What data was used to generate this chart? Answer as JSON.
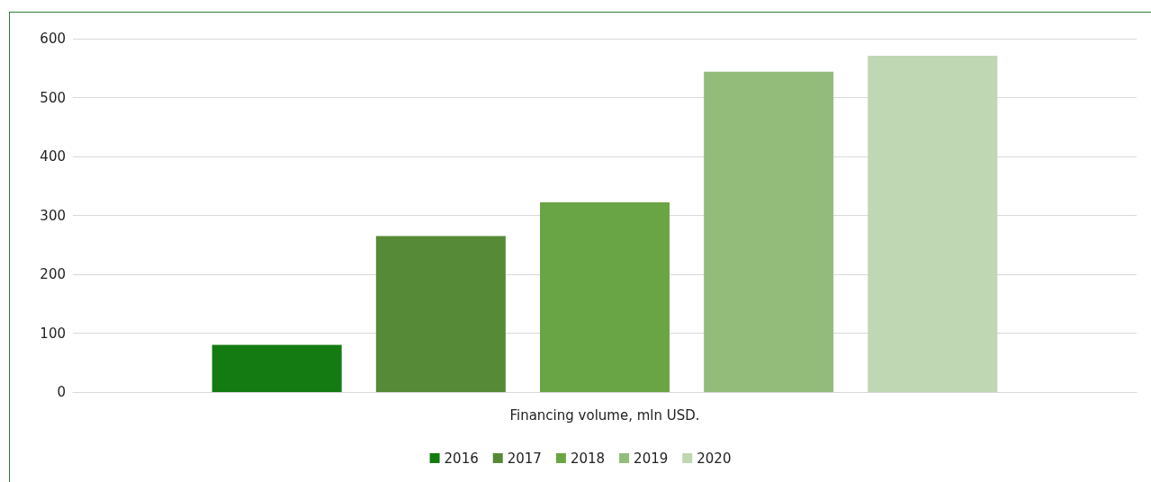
{
  "chart_data": {
    "type": "bar",
    "categories": [
      "Financing volume, mln USD."
    ],
    "series": [
      {
        "name": "2016",
        "color": "#147a12",
        "values": [
          80
        ]
      },
      {
        "name": "2017",
        "color": "#568a36",
        "values": [
          265
        ]
      },
      {
        "name": "2018",
        "color": "#6aa545",
        "values": [
          322
        ]
      },
      {
        "name": "2019",
        "color": "#93bc7b",
        "values": [
          544
        ]
      },
      {
        "name": "2020",
        "color": "#bfd7b3",
        "values": [
          571
        ]
      }
    ],
    "ylim": [
      0,
      600
    ],
    "yticks": [
      0,
      100,
      200,
      300,
      400,
      500,
      600
    ],
    "grid": "y",
    "legend": "bottom"
  }
}
